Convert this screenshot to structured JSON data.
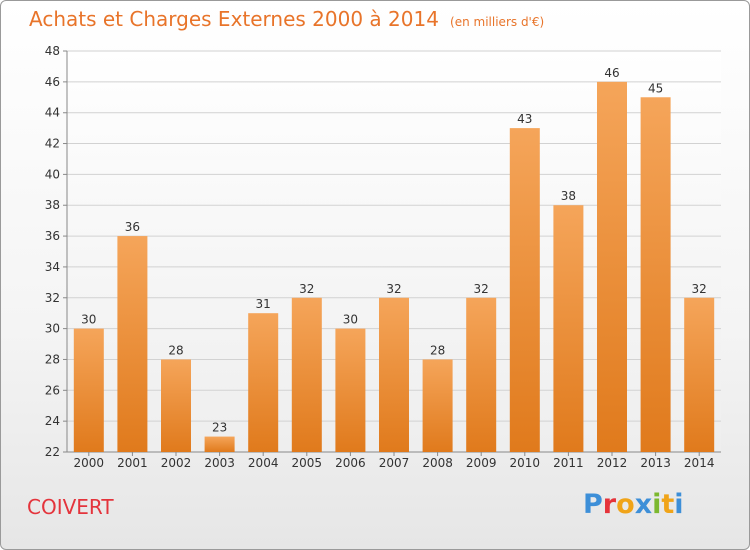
{
  "page": {
    "title": "Achats et Charges Externes 2000 à 2014",
    "unit": "(en milliers d'€)",
    "commune": "COIVERT",
    "brand": "Proxiti"
  },
  "colors": {
    "title": "#e8742a",
    "bar_light": "#f5a55a",
    "bar_dark": "#e07a1c",
    "commune": "#e4343c",
    "logo": [
      "#3d8fd8",
      "#e5333a",
      "#f0a419",
      "#3d8fd8",
      "#7cb82f",
      "#f0a419",
      "#3d8fd8"
    ]
  },
  "chart_data": {
    "type": "bar",
    "categories": [
      "2000",
      "2001",
      "2002",
      "2003",
      "2004",
      "2005",
      "2006",
      "2007",
      "2008",
      "2009",
      "2010",
      "2011",
      "2012",
      "2013",
      "2014"
    ],
    "values": [
      30,
      36,
      28,
      23,
      31,
      32,
      30,
      32,
      28,
      32,
      43,
      38,
      46,
      45,
      32
    ],
    "title": "Achats et Charges Externes 2000 à 2014",
    "subtitle": "(en milliers d'€)",
    "xlabel": "",
    "ylabel": "",
    "ylim": [
      22,
      48
    ],
    "yticks": [
      22,
      24,
      26,
      28,
      30,
      32,
      34,
      36,
      38,
      40,
      42,
      44,
      46,
      48
    ],
    "grid": true,
    "legend": "none"
  }
}
